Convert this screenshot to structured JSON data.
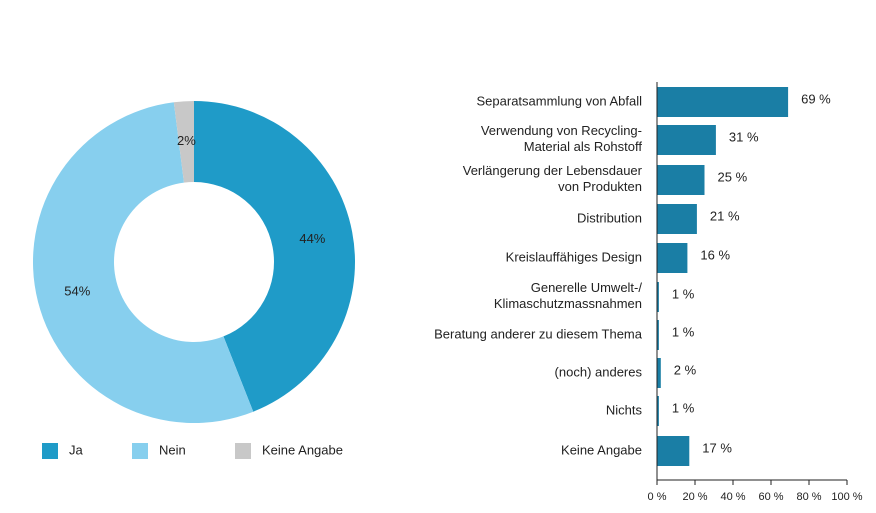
{
  "chart_data": [
    {
      "type": "donut",
      "categories": [
        "Ja",
        "Nein",
        "Keine Angabe"
      ],
      "values": [
        44,
        54,
        2
      ],
      "value_labels": [
        "44%",
        "54%",
        "2%"
      ],
      "colors": [
        "#1f9bc8",
        "#87cfee",
        "#c8c8c8"
      ]
    },
    {
      "type": "barh",
      "categories": [
        "Separatsammlung von Abfall",
        "Verwendung von Recycling-\nMaterial als Rohstoff",
        "Verlängerung der Lebensdauer\nvon Produkten",
        "Distribution",
        "Kreislauffähiges Design",
        "Generelle Umwelt-/\nKlimaschutzmassnahmen",
        "Beratung anderer zu diesem Thema",
        "(noch) anderes",
        "Nichts",
        "Keine Angabe"
      ],
      "values": [
        69,
        31,
        25,
        21,
        16,
        1,
        1,
        2,
        1,
        17
      ],
      "value_labels": [
        "69 %",
        "31 %",
        "25 %",
        "21 %",
        "16 %",
        "1 %",
        "1 %",
        "2 %",
        "1 %",
        "17 %"
      ],
      "color": "#1a7ea5",
      "xlim": [
        0,
        100
      ],
      "xticks": [
        {
          "value": 0,
          "label": "0 %"
        },
        {
          "value": 20,
          "label": "20 %"
        },
        {
          "value": 40,
          "label": "40 %"
        },
        {
          "value": 60,
          "label": "60 %"
        },
        {
          "value": 80,
          "label": "80 %"
        },
        {
          "value": 100,
          "label": "100 %"
        }
      ]
    }
  ]
}
